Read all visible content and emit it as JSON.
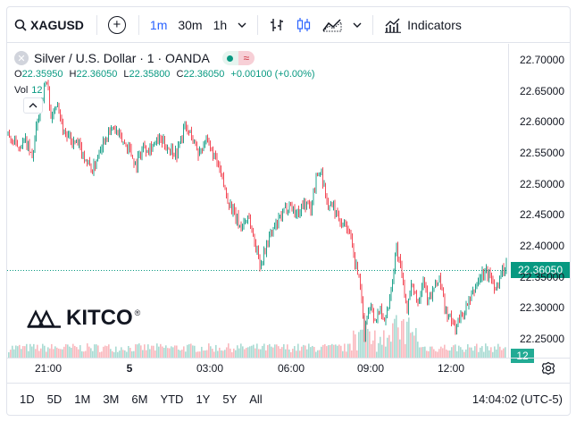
{
  "toolbar": {
    "symbol": "XAGUSD",
    "intervals": [
      "1m",
      "30m",
      "1h"
    ],
    "active_interval": "1m",
    "indicators_label": "Indicators"
  },
  "legend": {
    "title": "Silver / U.S. Dollar · 1 · OANDA",
    "ohlc": {
      "o_label": "O",
      "o": "22.35950",
      "h_label": "H",
      "h": "22.36050",
      "l_label": "L",
      "l": "22.35800",
      "c_label": "C",
      "c": "22.36050",
      "change": "+0.00100 (+0.00%)"
    },
    "vol_label": "Vol",
    "vol_value": "12"
  },
  "price_axis": {
    "labels": [
      "22.70000",
      "22.65000",
      "22.60000",
      "22.55000",
      "22.50000",
      "22.45000",
      "22.40000",
      "22.35000",
      "22.30000",
      "22.25000"
    ],
    "current_price": "22.36050",
    "volume_badge": "12"
  },
  "time_axis": {
    "labels": [
      "21:00",
      "5",
      "03:00",
      "06:00",
      "09:00",
      "12:00"
    ]
  },
  "bottom": {
    "ranges": [
      "1D",
      "5D",
      "1M",
      "3M",
      "6M",
      "YTD",
      "1Y",
      "5Y",
      "All"
    ],
    "clock": "14:04:02 (UTC-5)"
  },
  "logo": {
    "text": "KITCO"
  },
  "colors": {
    "up": "#089981",
    "down": "#f23645",
    "accent": "#2962ff"
  },
  "chart_data": {
    "type": "candlestick",
    "ylim": [
      22.22,
      22.72
    ],
    "current_price": 22.3605,
    "close_path": [
      [
        0,
        22.58
      ],
      [
        10,
        22.56
      ],
      [
        20,
        22.57
      ],
      [
        28,
        22.54
      ],
      [
        36,
        22.62
      ],
      [
        44,
        22.67
      ],
      [
        50,
        22.6
      ],
      [
        56,
        22.64
      ],
      [
        62,
        22.59
      ],
      [
        70,
        22.57
      ],
      [
        80,
        22.56
      ],
      [
        88,
        22.54
      ],
      [
        96,
        22.52
      ],
      [
        104,
        22.56
      ],
      [
        112,
        22.58
      ],
      [
        120,
        22.59
      ],
      [
        128,
        22.57
      ],
      [
        136,
        22.56
      ],
      [
        144,
        22.53
      ],
      [
        152,
        22.56
      ],
      [
        160,
        22.56
      ],
      [
        170,
        22.57
      ],
      [
        180,
        22.56
      ],
      [
        190,
        22.55
      ],
      [
        198,
        22.59
      ],
      [
        206,
        22.58
      ],
      [
        214,
        22.55
      ],
      [
        222,
        22.57
      ],
      [
        230,
        22.55
      ],
      [
        238,
        22.52
      ],
      [
        246,
        22.48
      ],
      [
        254,
        22.45
      ],
      [
        262,
        22.43
      ],
      [
        270,
        22.45
      ],
      [
        278,
        22.4
      ],
      [
        284,
        22.37
      ],
      [
        292,
        22.41
      ],
      [
        300,
        22.43
      ],
      [
        308,
        22.45
      ],
      [
        316,
        22.47
      ],
      [
        324,
        22.45
      ],
      [
        332,
        22.47
      ],
      [
        340,
        22.46
      ],
      [
        346,
        22.51
      ],
      [
        352,
        22.52
      ],
      [
        358,
        22.47
      ],
      [
        366,
        22.46
      ],
      [
        374,
        22.44
      ],
      [
        382,
        22.43
      ],
      [
        388,
        22.38
      ],
      [
        394,
        22.35
      ],
      [
        400,
        22.26
      ],
      [
        406,
        22.31
      ],
      [
        412,
        22.28
      ],
      [
        418,
        22.3
      ],
      [
        424,
        22.28
      ],
      [
        430,
        22.33
      ],
      [
        436,
        22.4
      ],
      [
        442,
        22.35
      ],
      [
        448,
        22.3
      ],
      [
        454,
        22.34
      ],
      [
        460,
        22.31
      ],
      [
        466,
        22.35
      ],
      [
        472,
        22.31
      ],
      [
        478,
        22.33
      ],
      [
        484,
        22.35
      ],
      [
        490,
        22.3
      ],
      [
        496,
        22.28
      ],
      [
        502,
        22.27
      ],
      [
        510,
        22.29
      ],
      [
        518,
        22.31
      ],
      [
        526,
        22.34
      ],
      [
        534,
        22.36
      ],
      [
        542,
        22.35
      ],
      [
        548,
        22.33
      ],
      [
        554,
        22.36
      ],
      [
        560,
        22.37
      ]
    ]
  }
}
